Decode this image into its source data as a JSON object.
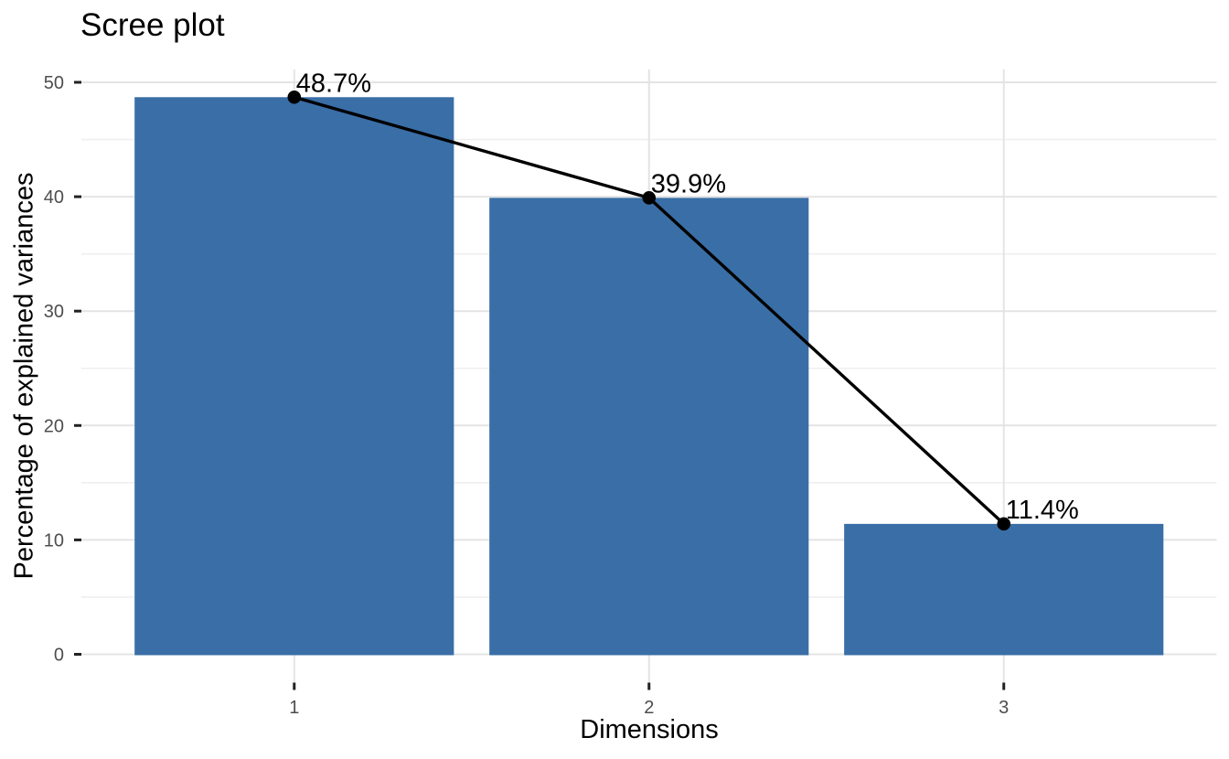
{
  "chart_data": {
    "type": "bar",
    "title": "Scree plot",
    "xlabel": "Dimensions",
    "ylabel": "Percentage of explained variances",
    "categories": [
      "1",
      "2",
      "3"
    ],
    "values": [
      48.7,
      39.9,
      11.4
    ],
    "point_labels": [
      "48.7%",
      "39.9%",
      "11.4%"
    ],
    "overlay": "line-with-points",
    "ylim": [
      0,
      50
    ],
    "yticks_major": [
      0,
      10,
      20,
      30,
      40,
      50
    ],
    "yticks_minor": [
      5,
      15,
      25,
      35,
      45
    ],
    "grid": "major-and-minor",
    "legend_position": "none",
    "colors": {
      "bar_fill": "#3A6EA6",
      "line": "#000000",
      "point": "#000000",
      "grid_major": "#E4E4E4",
      "grid_minor": "#EFEFEF",
      "tick_mark": "#222222",
      "tick_label": "#4D4D4D",
      "text": "#000000",
      "background": "#FFFFFF"
    }
  }
}
